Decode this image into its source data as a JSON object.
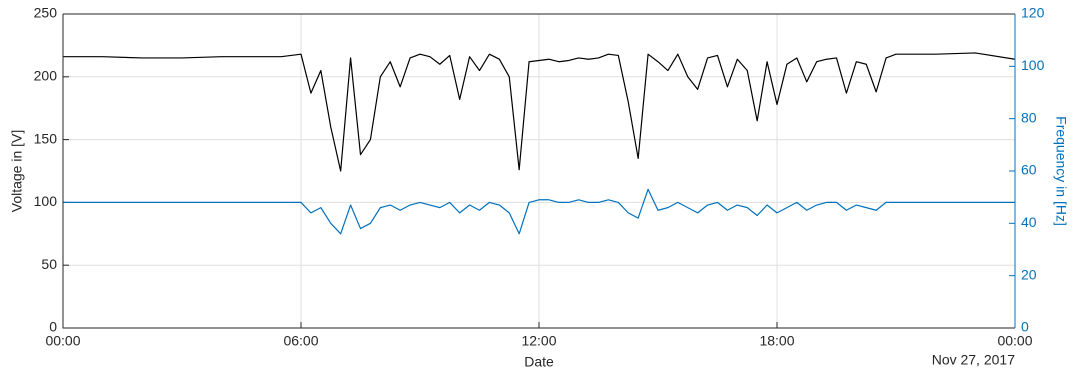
{
  "chart_data": {
    "type": "line",
    "xlabel": "Date",
    "ylabel": "Voltage in [V]",
    "y2label": "Frequency in [Hz]",
    "date_label": "Nov 27, 2017",
    "grid": true,
    "xlim": [
      0,
      24
    ],
    "xticks": [
      {
        "value": 0,
        "label": "00:00"
      },
      {
        "value": 6,
        "label": "06:00"
      },
      {
        "value": 12,
        "label": "12:00"
      },
      {
        "value": 18,
        "label": "18:00"
      },
      {
        "value": 24,
        "label": "00:00"
      }
    ],
    "ylim": [
      0,
      250
    ],
    "yticks": [
      0,
      50,
      100,
      150,
      200,
      250
    ],
    "y2lim": [
      0,
      120
    ],
    "y2ticks": [
      0,
      20,
      40,
      60,
      80,
      100,
      120
    ],
    "y2color": "#0072bd",
    "x": [
      0,
      1,
      2,
      3,
      4,
      5,
      5.5,
      6,
      6.25,
      6.5,
      6.75,
      7,
      7.25,
      7.5,
      7.75,
      8,
      8.25,
      8.5,
      8.75,
      9,
      9.25,
      9.5,
      9.75,
      10,
      10.25,
      10.5,
      10.75,
      11,
      11.25,
      11.5,
      11.75,
      12,
      12.25,
      12.5,
      12.75,
      13,
      13.25,
      13.5,
      13.75,
      14,
      14.25,
      14.5,
      14.75,
      15,
      15.25,
      15.5,
      15.75,
      16,
      16.25,
      16.5,
      16.75,
      17,
      17.25,
      17.5,
      17.75,
      18,
      18.25,
      18.5,
      18.75,
      19,
      19.25,
      19.5,
      19.75,
      20,
      20.25,
      20.5,
      20.75,
      21,
      22,
      23,
      24
    ],
    "series": [
      {
        "name": "Voltage",
        "color": "#000000",
        "axis": "y",
        "values": [
          216,
          216,
          215,
          215,
          216,
          216,
          216,
          218,
          187,
          205,
          160,
          125,
          215,
          138,
          150,
          200,
          212,
          192,
          215,
          218,
          216,
          210,
          217,
          182,
          216,
          205,
          218,
          214,
          200,
          126,
          212,
          213,
          214,
          212,
          213,
          215,
          214,
          215,
          218,
          217,
          180,
          135,
          218,
          212,
          205,
          218,
          200,
          190,
          215,
          217,
          192,
          214,
          205,
          165,
          212,
          178,
          210,
          215,
          196,
          212,
          214,
          215,
          187,
          212,
          210,
          188,
          215,
          218,
          218,
          219,
          214
        ]
      },
      {
        "name": "Frequency",
        "color": "#0072bd",
        "axis": "y2",
        "values": [
          48,
          48,
          48,
          48,
          48,
          48,
          48,
          48,
          44,
          46,
          40,
          36,
          47,
          38,
          40,
          46,
          47,
          45,
          47,
          48,
          47,
          46,
          48,
          44,
          47,
          45,
          48,
          47,
          44,
          36,
          48,
          49,
          49,
          48,
          48,
          49,
          48,
          48,
          49,
          48,
          44,
          42,
          53,
          45,
          46,
          48,
          46,
          44,
          47,
          48,
          45,
          47,
          46,
          43,
          47,
          44,
          46,
          48,
          45,
          47,
          48,
          48,
          45,
          47,
          46,
          45,
          48,
          48,
          48,
          48,
          48
        ]
      }
    ]
  }
}
